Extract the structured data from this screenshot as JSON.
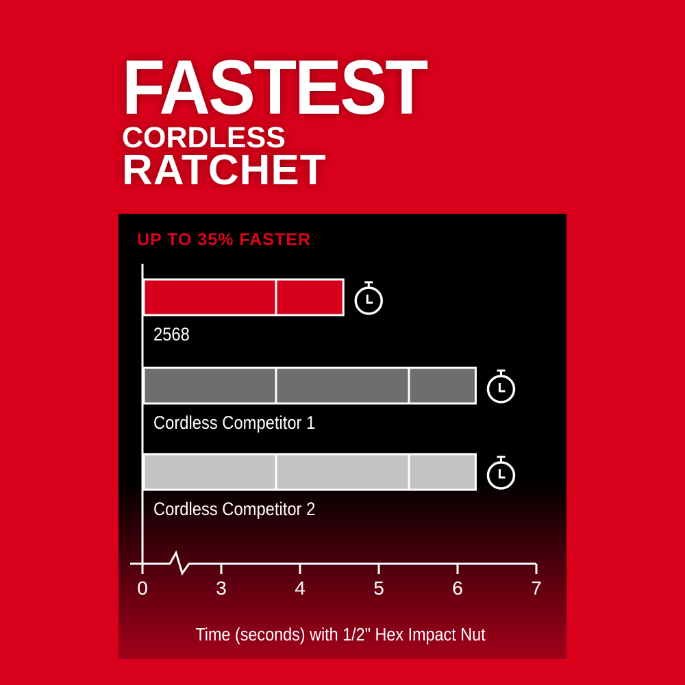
{
  "headline": {
    "line1": "FASTEST",
    "line2": "CORDLESS",
    "line3": "RATCHET"
  },
  "colors": {
    "background": "#d9001b",
    "panel": "#000000",
    "bar_red": "#d6001c",
    "bar_dark_gray": "#6e6e70",
    "bar_light_gray": "#c3c3c3",
    "subtitle": "#e0001b"
  },
  "chart_data": {
    "type": "bar",
    "orientation": "horizontal",
    "title": "UP TO 35% FASTER",
    "xlabel": "Time (seconds) with 1/2\" Hex Impact Nut",
    "ylabel": "",
    "xlim": [
      0,
      7
    ],
    "axis_break": "between 0 and 3",
    "ticks": [
      "0",
      "3",
      "4",
      "5",
      "6",
      "7"
    ],
    "categories": [
      "2568",
      "Cordless Competitor 1",
      "Cordless Competitor 2"
    ],
    "values": [
      4.55,
      6.23,
      6.23
    ],
    "bar_icon": "stopwatch-icon",
    "grid": false
  }
}
